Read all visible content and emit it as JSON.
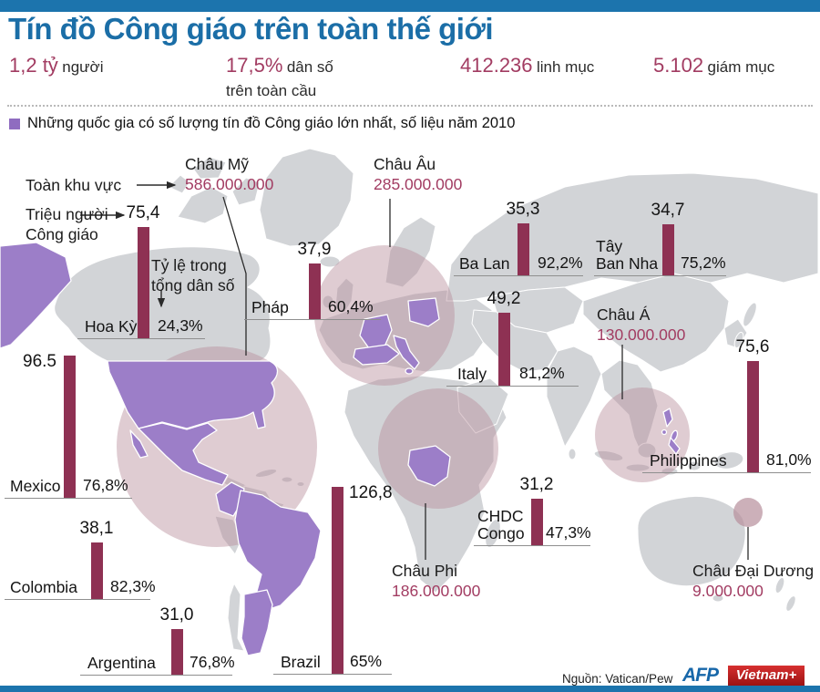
{
  "header": {
    "title": "Tín đồ Công giáo trên toàn thế giới",
    "stats": [
      {
        "value": "1,2 tỷ",
        "label": "người"
      },
      {
        "value": "17,5%",
        "label": "dân số\ntrên toàn cầu"
      },
      {
        "value": "412.236",
        "label": "linh mục"
      },
      {
        "value": "5.102",
        "label": "giám mục"
      }
    ],
    "subtitle": "Những quốc gia có số lượng tín đồ Công giáo lớn nhất, số liệu năm 2010"
  },
  "legend": {
    "region_total": "Toàn khu vực",
    "millions": "Triệu người Công giáo",
    "percent": "Tỷ lệ trong tổng dân số"
  },
  "chart_data": {
    "type": "bar",
    "title": "Tín đồ Công giáo trên toàn thế giới",
    "year": "2010",
    "bar_unit": "triệu người Công giáo",
    "regions": [
      {
        "id": "americas",
        "name": "Châu Mỹ",
        "total": "586.000.000"
      },
      {
        "id": "europe",
        "name": "Châu Âu",
        "total": "285.000.000"
      },
      {
        "id": "asia",
        "name": "Châu Á",
        "total": "130.000.000"
      },
      {
        "id": "africa",
        "name": "Châu Phi",
        "total": "186.000.000"
      },
      {
        "id": "oceania",
        "name": "Châu Đại Dương",
        "total": "9.000.000"
      }
    ],
    "countries": [
      {
        "id": "us",
        "name": "Hoa Kỳ",
        "millions_label": "75,4",
        "millions": 75.4,
        "percent": "24,3%"
      },
      {
        "id": "fr",
        "name": "Pháp",
        "millions_label": "37,9",
        "millions": 37.9,
        "percent": "60,4%"
      },
      {
        "id": "pl",
        "name": "Ba Lan",
        "millions_label": "35,3",
        "millions": 35.3,
        "percent": "92,2%"
      },
      {
        "id": "es",
        "name": "Tây\nBan Nha",
        "millions_label": "34,7",
        "millions": 34.7,
        "percent": "75,2%"
      },
      {
        "id": "it",
        "name": "Italy",
        "millions_label": "49,2",
        "millions": 49.2,
        "percent": "81,2%"
      },
      {
        "id": "mx",
        "name": "Mexico",
        "millions_label": "96.5",
        "millions": 96.5,
        "percent": "76,8%"
      },
      {
        "id": "co",
        "name": "Colombia",
        "millions_label": "38,1",
        "millions": 38.1,
        "percent": "82,3%"
      },
      {
        "id": "ar",
        "name": "Argentina",
        "millions_label": "31,0",
        "millions": 31.0,
        "percent": "76,8%"
      },
      {
        "id": "br",
        "name": "Brazil",
        "millions_label": "126,8",
        "millions": 126.8,
        "percent": "65%"
      },
      {
        "id": "cd",
        "name": "CHDC\nCongo",
        "millions_label": "31,2",
        "millions": 31.2,
        "percent": "47,3%"
      },
      {
        "id": "ph",
        "name": "Philippines",
        "millions_label": "75,6",
        "millions": 75.6,
        "percent": "81,0%"
      }
    ]
  },
  "footer": {
    "source": "Nguồn: Vatican/Pew",
    "afp": "AFP",
    "vietnamplus": "Vietnam+"
  },
  "colors": {
    "accent_blue": "#1c74ad",
    "maroon_bar": "#8e3153",
    "maroon_text": "#a23c62",
    "purple": "#9c7ec8",
    "pink_circle": "#b78e9b",
    "land_gray": "#d2d4d7"
  }
}
